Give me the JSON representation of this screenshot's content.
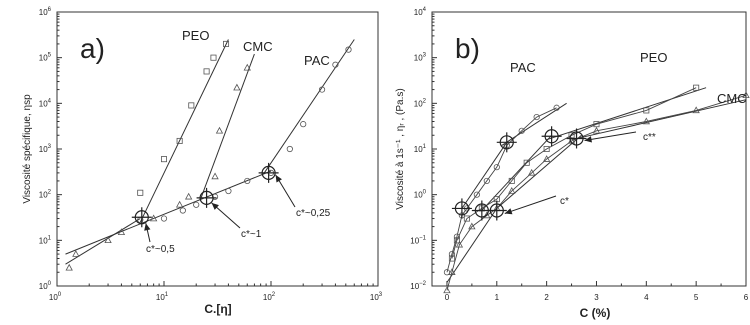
{
  "chart_data": [
    {
      "panel_label": "a)",
      "type": "scatter",
      "x_scale": "log",
      "y_scale": "log",
      "xlabel": "C.[η]",
      "ylabel": "Viscosité spécifique, ηsp",
      "xlim": [
        1,
        1000
      ],
      "ylim": [
        1,
        1000000
      ],
      "x_ticks": [
        "10⁰",
        "10¹",
        "10²",
        "10³"
      ],
      "y_ticks": [
        "10⁰",
        "10¹",
        "10²",
        "10³",
        "10⁴",
        "10⁵",
        "10⁶"
      ],
      "series": [
        {
          "name": "PEO",
          "marker": "square",
          "points": [
            [
              6,
              110
            ],
            [
              10,
              600
            ],
            [
              14,
              1500
            ],
            [
              18,
              9000
            ],
            [
              25,
              50000
            ],
            [
              29,
              100000
            ],
            [
              38,
              200000
            ]
          ]
        },
        {
          "name": "CMC",
          "marker": "triangle",
          "points": [
            [
              1.3,
              2.5
            ],
            [
              1.5,
              5
            ],
            [
              3,
              10
            ],
            [
              4,
              15
            ],
            [
              8,
              30
            ],
            [
              14,
              60
            ],
            [
              17,
              90
            ],
            [
              30,
              250
            ],
            [
              33,
              2500
            ],
            [
              48,
              22000
            ],
            [
              60,
              60000
            ]
          ]
        },
        {
          "name": "PAC",
          "marker": "circle",
          "points": [
            [
              6,
              28
            ],
            [
              10,
              30
            ],
            [
              15,
              45
            ],
            [
              20,
              60
            ],
            [
              30,
              90
            ],
            [
              40,
              120
            ],
            [
              60,
              200
            ],
            [
              100,
              300
            ],
            [
              150,
              1000
            ],
            [
              200,
              3500
            ],
            [
              300,
              20000
            ],
            [
              400,
              70000
            ],
            [
              530,
              150000
            ]
          ]
        }
      ],
      "fit_lines": [
        {
          "name": "dilute",
          "points": [
            [
              1.2,
              3
            ],
            [
              6,
              30
            ]
          ]
        },
        {
          "name": "semi-dilute",
          "points": [
            [
              1.2,
              5
            ],
            [
              100,
              330
            ]
          ]
        },
        {
          "name": "PEO-fit",
          "points": [
            [
              6,
              25
            ],
            [
              40,
              250000
            ]
          ]
        },
        {
          "name": "CMC-fit",
          "points": [
            [
              22,
              80
            ],
            [
              70,
              120000
            ]
          ]
        },
        {
          "name": "PAC-fit",
          "points": [
            [
              85,
              280
            ],
            [
              600,
              250000
            ]
          ]
        }
      ],
      "transitions": [
        {
          "label": "c*~0,5",
          "x": 6.2,
          "y": 32
        },
        {
          "label": "c*~1",
          "x": 25,
          "y": 85
        },
        {
          "label": "c*~0,25",
          "x": 95,
          "y": 300
        }
      ]
    },
    {
      "panel_label": "b)",
      "type": "scatter",
      "x_scale": "linear",
      "y_scale": "log",
      "xlabel": "C (%)",
      "ylabel": "Viscosité à 1s⁻¹ , ηᵣ , (Pa.s)",
      "xlim": [
        -0.3,
        6
      ],
      "ylim": [
        0.01,
        10000
      ],
      "x_ticks": [
        "0",
        "1",
        "2",
        "3",
        "4",
        "5",
        "6"
      ],
      "y_ticks": [
        "10⁻²",
        "10⁻¹",
        "10⁰",
        "10¹",
        "10²",
        "10³",
        "10⁴"
      ],
      "series": [
        {
          "name": "PAC",
          "marker": "circle",
          "points": [
            [
              0,
              0.02
            ],
            [
              0.1,
              0.05
            ],
            [
              0.2,
              0.12
            ],
            [
              0.3,
              0.35
            ],
            [
              0.4,
              0.5
            ],
            [
              0.6,
              1
            ],
            [
              0.8,
              2
            ],
            [
              1.0,
              4
            ],
            [
              1.2,
              12
            ],
            [
              1.5,
              25
            ],
            [
              1.8,
              50
            ],
            [
              2.2,
              80
            ]
          ]
        },
        {
          "name": "PEO",
          "marker": "square",
          "points": [
            [
              0.1,
              0.04
            ],
            [
              0.2,
              0.1
            ],
            [
              0.4,
              0.3
            ],
            [
              0.7,
              0.5
            ],
            [
              1.0,
              0.8
            ],
            [
              1.3,
              2
            ],
            [
              1.6,
              5
            ],
            [
              2.0,
              10
            ],
            [
              2.5,
              20
            ],
            [
              3.0,
              35
            ],
            [
              4.0,
              70
            ],
            [
              5.0,
              220
            ]
          ]
        },
        {
          "name": "CMC",
          "marker": "triangle",
          "points": [
            [
              0,
              0.008
            ],
            [
              0.1,
              0.02
            ],
            [
              0.25,
              0.08
            ],
            [
              0.5,
              0.2
            ],
            [
              0.8,
              0.35
            ],
            [
              1.0,
              0.5
            ],
            [
              1.3,
              1.2
            ],
            [
              1.7,
              3
            ],
            [
              2.0,
              6
            ],
            [
              2.5,
              15
            ],
            [
              3.0,
              25
            ],
            [
              4.0,
              40
            ],
            [
              5.0,
              70
            ],
            [
              6.0,
              150
            ]
          ]
        }
      ],
      "fit_lines": [
        {
          "name": "PAC-upper",
          "points": [
            [
              1.1,
              12
            ],
            [
              2.4,
              100
            ]
          ]
        },
        {
          "name": "PAC-mid",
          "points": [
            [
              0.3,
              0.5
            ],
            [
              1.2,
              14
            ]
          ]
        },
        {
          "name": "PEO-upper",
          "points": [
            [
              2.0,
              16
            ],
            [
              5.2,
              220
            ]
          ]
        },
        {
          "name": "PEO-mid",
          "points": [
            [
              0.7,
              0.45
            ],
            [
              2.1,
              20
            ]
          ]
        },
        {
          "name": "CMC-upper",
          "points": [
            [
              2.5,
              16
            ],
            [
              6,
              120
            ]
          ]
        },
        {
          "name": "CMC-mid",
          "points": [
            [
              0.95,
              0.45
            ],
            [
              2.7,
              20
            ]
          ]
        },
        {
          "name": "dilute-common",
          "points": [
            [
              0,
              0.012
            ],
            [
              1.0,
              0.5
            ]
          ]
        }
      ],
      "transitions": [
        {
          "label": "c*",
          "points": [
            [
              0.3,
              0.5
            ],
            [
              0.7,
              0.45
            ],
            [
              1.0,
              0.45
            ]
          ]
        },
        {
          "label": "c**",
          "points": [
            [
              1.2,
              14
            ],
            [
              2.1,
              19
            ],
            [
              2.6,
              17
            ]
          ]
        }
      ]
    }
  ],
  "annotation_labels": {
    "a_c1": "c*~0,5",
    "a_c2": "c*~1",
    "a_c3": "c*~0,25",
    "b_cstar": "c*",
    "b_cstarstar": "c**"
  }
}
